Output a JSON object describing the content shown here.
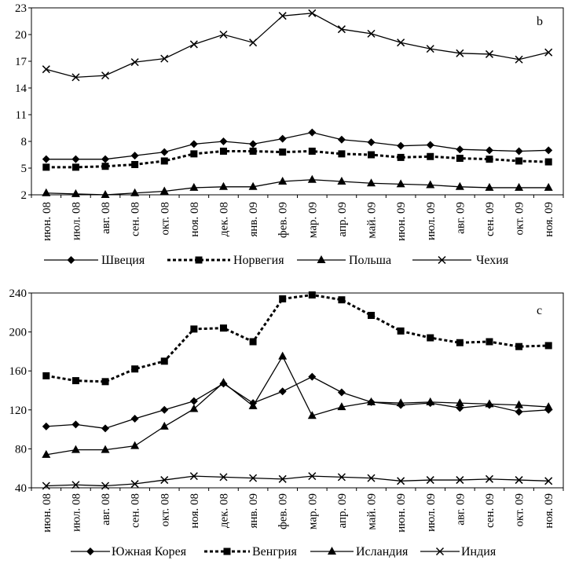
{
  "chart_data": [
    {
      "type": "line",
      "panel_label": "b",
      "categories": [
        "июн. 08",
        "июл. 08",
        "авг. 08",
        "сен. 08",
        "окт. 08",
        "ноя. 08",
        "дек. 08",
        "янв. 09",
        "фев. 09",
        "мар. 09",
        "апр. 09",
        "май. 09",
        "июн. 09",
        "июл. 09",
        "авг. 09",
        "сен. 09",
        "окт. 09",
        "ноя. 09"
      ],
      "ylim": [
        2,
        23
      ],
      "yticks": [
        2,
        5,
        8,
        11,
        14,
        17,
        20,
        23
      ],
      "grid": false,
      "legend_position": "bottom",
      "series": [
        {
          "name": "Швеция",
          "marker": "diamond",
          "dash": "solid",
          "color": "#000000",
          "values": [
            6.0,
            6.0,
            6.0,
            6.4,
            6.8,
            7.7,
            8.0,
            7.7,
            8.3,
            9.0,
            8.2,
            7.9,
            7.5,
            7.6,
            7.1,
            7.0,
            6.9,
            7.0
          ]
        },
        {
          "name": "Норвегия",
          "marker": "square",
          "dash": "dotted",
          "color": "#000000",
          "values": [
            5.1,
            5.1,
            5.2,
            5.4,
            5.8,
            6.6,
            6.9,
            6.9,
            6.8,
            6.9,
            6.6,
            6.5,
            6.2,
            6.3,
            6.1,
            6.0,
            5.8,
            5.7
          ]
        },
        {
          "name": "Польша",
          "marker": "triangle",
          "dash": "solid",
          "color": "#000000",
          "values": [
            2.2,
            2.1,
            2.0,
            2.2,
            2.4,
            2.8,
            2.9,
            2.9,
            3.5,
            3.7,
            3.5,
            3.3,
            3.2,
            3.1,
            2.9,
            2.8,
            2.8,
            2.8
          ]
        },
        {
          "name": "Чехия",
          "marker": "x",
          "dash": "solid",
          "color": "#000000",
          "values": [
            16.1,
            15.2,
            15.4,
            16.9,
            17.3,
            18.9,
            20.0,
            19.1,
            22.1,
            22.4,
            20.6,
            20.1,
            19.1,
            18.4,
            17.9,
            17.8,
            17.2,
            18.0
          ]
        }
      ]
    },
    {
      "type": "line",
      "panel_label": "c",
      "categories": [
        "июн. 08",
        "июл. 08",
        "авг. 08",
        "сен. 08",
        "окт. 08",
        "ноя. 08",
        "дек. 08",
        "янв. 09",
        "фев. 09",
        "мар. 09",
        "апр. 09",
        "май. 09",
        "июн. 09",
        "июл. 09",
        "авг. 09",
        "сен. 09",
        "окт. 09",
        "ноя. 09"
      ],
      "ylim": [
        40,
        240
      ],
      "yticks": [
        40,
        80,
        120,
        160,
        200,
        240
      ],
      "grid": false,
      "legend_position": "bottom",
      "series": [
        {
          "name": "Южная Корея",
          "marker": "diamond",
          "dash": "solid",
          "color": "#000000",
          "values": [
            103,
            105,
            101,
            111,
            120,
            129,
            147,
            127,
            139,
            154,
            138,
            128,
            125,
            127,
            122,
            125,
            118,
            120
          ]
        },
        {
          "name": "Венгрия",
          "marker": "square",
          "dash": "dotted",
          "color": "#000000",
          "values": [
            155,
            150,
            149,
            162,
            170,
            203,
            204,
            190,
            234,
            238,
            233,
            217,
            201,
            194,
            189,
            190,
            185,
            186
          ]
        },
        {
          "name": "Исландия",
          "marker": "triangle",
          "dash": "solid",
          "color": "#000000",
          "values": [
            74,
            79,
            79,
            83,
            103,
            121,
            148,
            124,
            175,
            114,
            123,
            128,
            127,
            128,
            127,
            126,
            125,
            123
          ]
        },
        {
          "name": "Индия",
          "marker": "x",
          "dash": "solid",
          "color": "#000000",
          "values": [
            42,
            43,
            42,
            44,
            48,
            52,
            51,
            50,
            49,
            52,
            51,
            50,
            47,
            48,
            48,
            49,
            48,
            47
          ]
        }
      ]
    }
  ]
}
